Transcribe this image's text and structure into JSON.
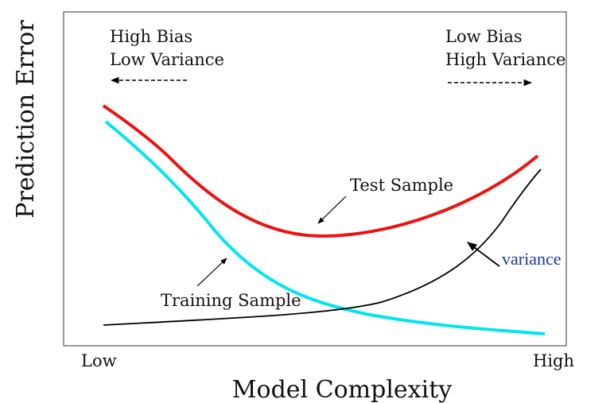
{
  "axes": {
    "y_label": "Prediction Error",
    "x_label": "Model Complexity",
    "x_low": "Low",
    "x_high": "High"
  },
  "annotations": {
    "left_line1": "High Bias",
    "left_line2": "Low Variance",
    "right_line1": "Low Bias",
    "right_line2": "High Variance",
    "test": "Test Sample",
    "training": "Training Sample",
    "variance": "variance"
  }
}
